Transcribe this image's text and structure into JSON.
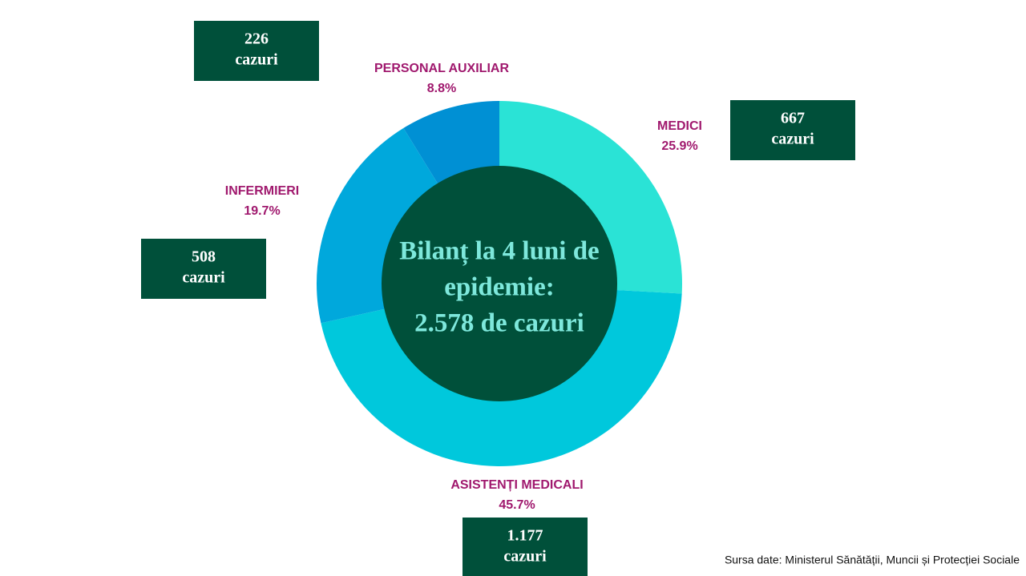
{
  "chart_data": {
    "type": "donut",
    "categories": [
      "MEDICI",
      "ASISTENȚI MEDICALI",
      "INFERMIERI",
      "PERSONAL AUXILIAR"
    ],
    "values": [
      25.9,
      45.7,
      19.7,
      8.8
    ],
    "value_labels": [
      "25.9%",
      "45.7%",
      "19.7%",
      "8.8%"
    ],
    "colors": [
      "#2ae3d6",
      "#00c8dc",
      "#00a8dc",
      "#0090d4"
    ],
    "case_labels": [
      "667",
      "1.177",
      "508",
      "226"
    ],
    "case_unit": "cazuri",
    "center_text": [
      "Bilanț la 4 luni de",
      "epidemie:",
      "2.578 de cazuri"
    ],
    "source": "Sursa date: Ministerul Sănătății, Muncii și Protecției Sociale"
  }
}
